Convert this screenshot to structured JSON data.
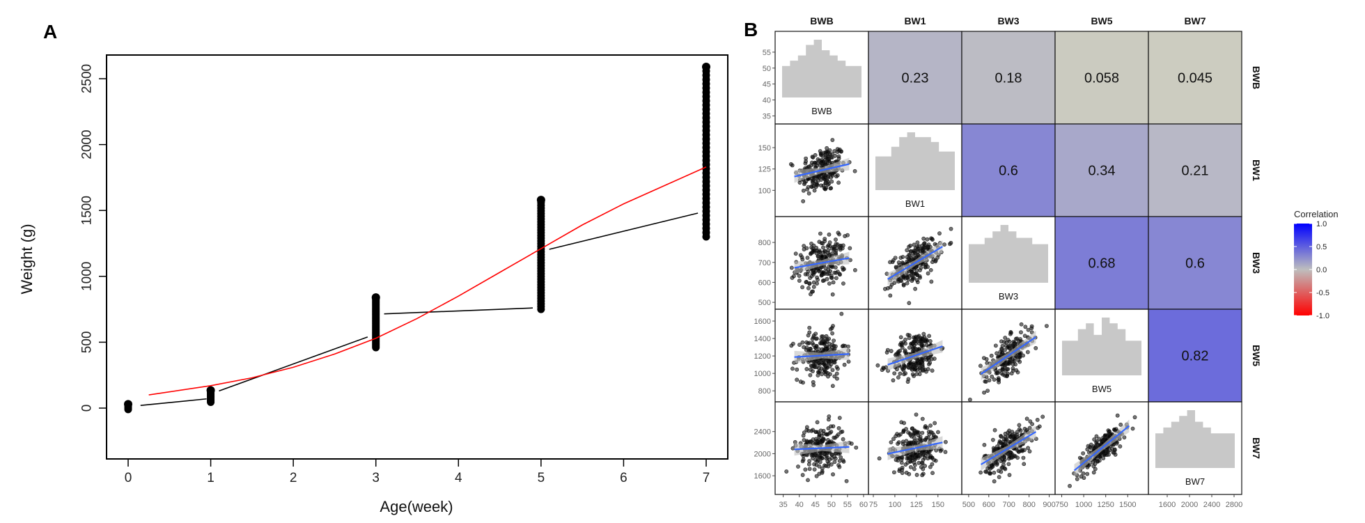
{
  "chart_data": [
    {
      "panel": "A",
      "type": "scatter",
      "title": "",
      "xlabel": "Age(week)",
      "ylabel": "Weight (g)",
      "xlim": [
        -0.3,
        7.3
      ],
      "ylim": [
        -150,
        2700
      ],
      "xticks": [
        "0",
        "1",
        "2",
        "3",
        "4",
        "5",
        "6",
        "7"
      ],
      "yticks": [
        "0",
        "500",
        "1000",
        "1500",
        "2000",
        "2500"
      ],
      "grid": false,
      "point_ranges": [
        {
          "age": 0,
          "min": -10,
          "max": 30
        },
        {
          "age": 1,
          "min": 45,
          "max": 135
        },
        {
          "age": 3,
          "min": 460,
          "max": 840
        },
        {
          "age": 5,
          "min": 750,
          "max": 1580
        },
        {
          "age": 7,
          "min": 1300,
          "max": 2590
        }
      ],
      "segments": [
        {
          "x": [
            0.15,
            0.95
          ],
          "y": [
            20,
            70
          ]
        },
        {
          "x": [
            1.1,
            2.9
          ],
          "y": [
            130,
            540
          ]
        },
        {
          "x": [
            3.1,
            4.9
          ],
          "y": [
            715,
            760
          ]
        },
        {
          "x": [
            5.1,
            6.9
          ],
          "y": [
            1205,
            1480
          ]
        }
      ],
      "fit_curve": {
        "x": [
          0.25,
          1,
          1.5,
          2,
          2.5,
          3,
          3.5,
          4,
          4.5,
          5,
          5.5,
          6,
          6.5,
          7
        ],
        "y": [
          100,
          170,
          230,
          310,
          410,
          530,
          680,
          850,
          1030,
          1210,
          1390,
          1550,
          1690,
          1830
        ]
      },
      "colors": {
        "points": "#000000",
        "segments": "#000000",
        "fit_curve": "#ff0000"
      }
    },
    {
      "panel": "B",
      "type": "scatter-matrix",
      "variables": [
        "BWB",
        "BW1",
        "BW3",
        "BW5",
        "BW7"
      ],
      "ranges": [
        [
          34,
          60
        ],
        [
          75,
          172
        ],
        [
          490,
          905
        ],
        [
          730,
          1680
        ],
        [
          1350,
          2850
        ]
      ],
      "y_ticks": [
        [
          "35",
          "40",
          "45",
          "50",
          "55"
        ],
        [
          "100",
          "125",
          "150"
        ],
        [
          "500",
          "600",
          "700",
          "800"
        ],
        [
          "800",
          "1000",
          "1200",
          "1400",
          "1600"
        ],
        [
          "1600",
          "2000",
          "2400"
        ]
      ],
      "x_ticks": [
        [
          "35",
          "40",
          "45",
          "50",
          "55",
          "60"
        ],
        [
          "75",
          "100",
          "125",
          "150"
        ],
        [
          "500",
          "600",
          "700",
          "800",
          "900"
        ],
        [
          "750",
          "1000",
          "1250",
          "1500"
        ],
        [
          "1600",
          "2000",
          "2400",
          "2800"
        ]
      ],
      "histograms": [
        [
          6,
          7,
          8,
          10,
          11,
          9,
          8,
          7,
          6,
          6
        ],
        [
          7,
          7,
          9,
          11,
          12,
          11,
          11,
          10,
          8,
          8
        ],
        [
          6,
          6,
          7,
          8,
          9,
          8,
          7,
          7,
          6,
          6
        ],
        [
          6,
          6,
          8,
          9,
          7,
          10,
          9,
          8,
          6,
          6
        ],
        [
          6,
          7,
          8,
          9,
          10,
          8,
          7,
          6,
          6,
          6
        ]
      ],
      "correlations": [
        {
          "row": "BWB",
          "col": "BW1",
          "value": "0.23"
        },
        {
          "row": "BWB",
          "col": "BW3",
          "value": "0.18"
        },
        {
          "row": "BWB",
          "col": "BW5",
          "value": "0.058"
        },
        {
          "row": "BWB",
          "col": "BW7",
          "value": "0.045"
        },
        {
          "row": "BW1",
          "col": "BW3",
          "value": "0.6"
        },
        {
          "row": "BW1",
          "col": "BW5",
          "value": "0.34"
        },
        {
          "row": "BW1",
          "col": "BW7",
          "value": "0.21"
        },
        {
          "row": "BW3",
          "col": "BW5",
          "value": "0.68"
        },
        {
          "row": "BW3",
          "col": "BW7",
          "value": "0.6"
        },
        {
          "row": "BW5",
          "col": "BW7",
          "value": "0.82"
        }
      ],
      "legend": {
        "title": "Correlation",
        "ticks": [
          "1.0",
          "0.5",
          "0.0",
          "-0.5",
          "-1.0"
        ],
        "placement": "right",
        "colors": {
          "high": "#0000ff",
          "mid": "#bebebe",
          "low": "#ff0000"
        }
      },
      "colors": {
        "points": "#000000",
        "fit_line": "#3366ff",
        "band": "#cccccc",
        "histogram": "#c8c8c8"
      }
    }
  ],
  "labels": {
    "panel_a": "A",
    "panel_b": "B"
  }
}
